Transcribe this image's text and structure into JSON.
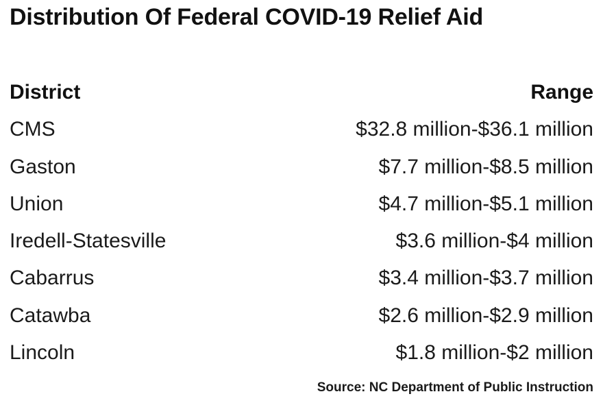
{
  "chart_data": {
    "type": "table",
    "title": "Distribution Of Federal COVID-19 Relief Aid",
    "columns": [
      "District",
      "Range"
    ],
    "rows": [
      {
        "district": "CMS",
        "range": "$32.8 million-$36.1 million"
      },
      {
        "district": "Gaston",
        "range": "$7.7 million-$8.5 million"
      },
      {
        "district": "Union",
        "range": "$4.7 million-$5.1 million"
      },
      {
        "district": "Iredell-Statesville",
        "range": "$3.6 million-$4 million"
      },
      {
        "district": "Cabarrus",
        "range": "$3.4 million-$3.7 million"
      },
      {
        "district": "Catawba",
        "range": "$2.6 million-$2.9 million"
      },
      {
        "district": "Lincoln",
        "range": "$1.8 million-$2 million"
      }
    ],
    "source": "Source: NC Department of Public Instruction"
  }
}
